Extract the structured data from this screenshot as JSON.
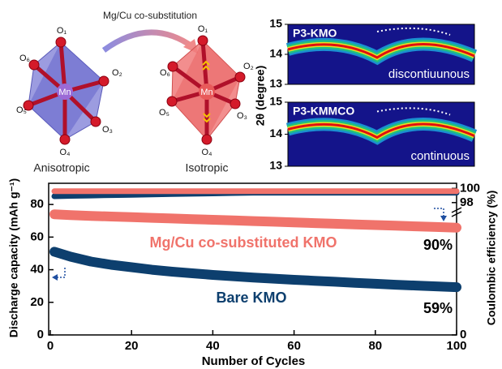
{
  "figure": {
    "substitution_label": "Mg/Cu co-substitution",
    "left_structure": {
      "center": "Mn",
      "atoms": [
        "O₁",
        "O₂",
        "O₃",
        "O₄",
        "O₅",
        "O₆"
      ],
      "caption": "Anisotropic"
    },
    "right_structure": {
      "center": "Mn",
      "atoms": [
        "O₁",
        "O₂",
        "O₃",
        "O₄",
        "O₅",
        "O₆"
      ],
      "caption": "Isotropic"
    },
    "xrd_axis_label": "2θ (degree)",
    "xrd_panels": [
      {
        "title": "P3-KMO",
        "note": "discontiuunous",
        "ticks": [
          "15",
          "14",
          "13"
        ]
      },
      {
        "title": "P3-KMMCO",
        "note": "continuous",
        "ticks": [
          "15",
          "14",
          "13"
        ]
      }
    ]
  },
  "chart_data": {
    "type": "scatter",
    "xlabel": "Number of Cycles",
    "ylabel": "Discharge capacity (mAh g⁻¹)",
    "y2label": "Coulombic efficiency (%)",
    "x": [
      1,
      5,
      10,
      15,
      20,
      25,
      30,
      35,
      40,
      45,
      50,
      55,
      60,
      65,
      70,
      75,
      80,
      85,
      90,
      95,
      100
    ],
    "xlim": [
      0,
      100
    ],
    "xticks": [
      0,
      20,
      40,
      60,
      80,
      100
    ],
    "ylim": [
      0,
      92
    ],
    "yticks": [
      0,
      20,
      40,
      60,
      80
    ],
    "y2lim": [
      0,
      100.5
    ],
    "y2_break": [
      0,
      97
    ],
    "y2ticks": [
      0,
      98,
      100
    ],
    "series": [
      {
        "name": "Mg/Cu co-substituted KMO",
        "color": "#f0736b",
        "values": [
          74,
          73.5,
          73,
          72.6,
          72.2,
          71.8,
          71.4,
          71,
          70.6,
          70.2,
          69.8,
          69.4,
          69,
          68.6,
          68.2,
          67.8,
          67.4,
          67,
          66.6,
          66.2,
          65.8
        ]
      },
      {
        "name": "Bare KMO",
        "color": "#0d3f6e",
        "values": [
          51,
          48,
          45,
          43,
          41.5,
          40,
          38.8,
          37.8,
          36.8,
          36,
          35.2,
          34.5,
          33.8,
          33.2,
          32.6,
          32,
          31.4,
          30.8,
          30.3,
          29.8,
          29.3
        ]
      },
      {
        "color": "#0d3f6e",
        "axis": "y2",
        "values": [
          98.9,
          98.95,
          99,
          99.05,
          99.1,
          99.15,
          99.2,
          99.25,
          99.3,
          99.35,
          99.4,
          99.4,
          99.4,
          99.4,
          99.4,
          99.4,
          99.4,
          99.4,
          99.4,
          99.4,
          99.4
        ]
      },
      {
        "color": "#f0736b",
        "axis": "y2",
        "values": [
          99.6,
          99.6,
          99.6,
          99.6,
          99.6,
          99.6,
          99.6,
          99.6,
          99.6,
          99.6,
          99.6,
          99.6,
          99.6,
          99.6,
          99.6,
          99.6,
          99.6,
          99.6,
          99.6,
          99.6,
          99.6
        ]
      }
    ],
    "annotations": [
      "90%",
      "59%"
    ]
  }
}
